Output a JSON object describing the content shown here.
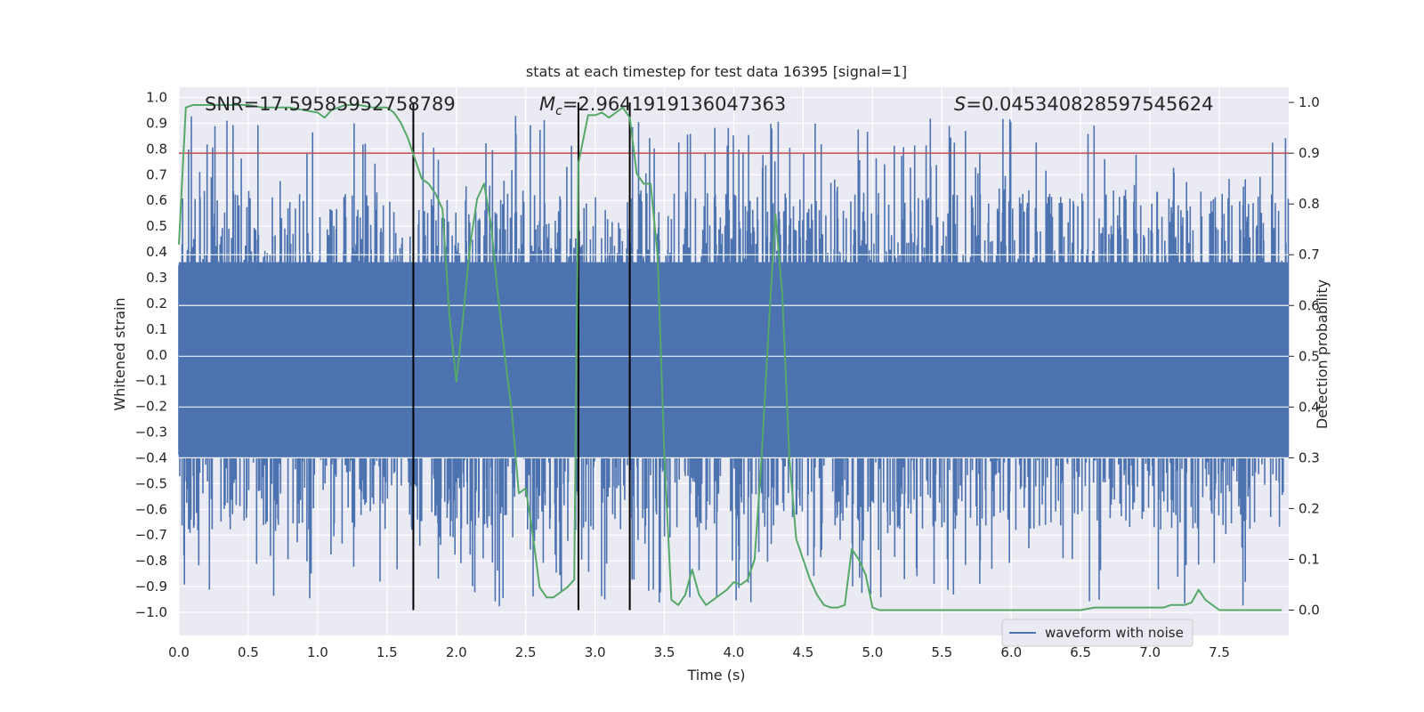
{
  "chart_data": {
    "type": "line",
    "title": "stats at each timestep for test data 16395 [signal=1]",
    "xlabel": "Time (s)",
    "ylabel_left": "Whitened strain",
    "ylabel_right": "Detection probability",
    "xlim": [
      0.0,
      8.0
    ],
    "ylim_left": [
      -1.09,
      1.04
    ],
    "ylim_right": [
      -0.05,
      1.03
    ],
    "x_ticks": [
      "0.0",
      "0.5",
      "1.0",
      "1.5",
      "2.0",
      "2.5",
      "3.0",
      "3.5",
      "4.0",
      "4.5",
      "5.0",
      "5.5",
      "6.0",
      "6.5",
      "7.0",
      "7.5"
    ],
    "y_left_ticks": [
      "1.0",
      "0.9",
      "0.8",
      "0.7",
      "0.6",
      "0.5",
      "0.4",
      "0.3",
      "0.2",
      "0.1",
      "0.0",
      "−0.1",
      "−0.2",
      "−0.3",
      "−0.4",
      "−0.5",
      "−0.6",
      "−0.7",
      "−0.8",
      "−0.9",
      "−1.0"
    ],
    "y_right_ticks": [
      "1.0",
      "0.9",
      "0.8",
      "0.7",
      "0.6",
      "0.5",
      "0.4",
      "0.3",
      "0.2",
      "0.1",
      "0.0"
    ],
    "grid": true,
    "legend": {
      "position": "bottom-right",
      "entries": [
        "waveform with noise"
      ]
    },
    "annotations": {
      "snr": "SNR=17.59585952758789",
      "mc_symbol": "M",
      "mc_sub": "c",
      "mc_value": "=2.9641919136047363",
      "s_symbol": "S",
      "s_value": "=0.045340828597545624"
    },
    "threshold": 0.9,
    "vlines": [
      1.69,
      2.88,
      3.25
    ],
    "waveform": {
      "name": "waveform with noise",
      "samples": 2400,
      "core_upper": 0.36,
      "core_lower": -0.4,
      "spike_upper_max": 0.93,
      "spike_lower_min": -0.98
    },
    "detection_probability": {
      "name": "detection probability",
      "x": [
        0.0,
        0.05,
        0.1,
        0.2,
        0.3,
        0.4,
        0.5,
        0.6,
        0.7,
        0.8,
        0.9,
        1.0,
        1.05,
        1.1,
        1.15,
        1.2,
        1.3,
        1.4,
        1.5,
        1.55,
        1.6,
        1.65,
        1.7,
        1.75,
        1.8,
        1.85,
        1.9,
        1.95,
        2.0,
        2.05,
        2.1,
        2.15,
        2.2,
        2.25,
        2.3,
        2.35,
        2.4,
        2.45,
        2.5,
        2.55,
        2.6,
        2.65,
        2.7,
        2.75,
        2.8,
        2.85,
        2.88,
        2.95,
        3.0,
        3.05,
        3.1,
        3.15,
        3.2,
        3.25,
        3.3,
        3.35,
        3.4,
        3.45,
        3.5,
        3.55,
        3.6,
        3.65,
        3.7,
        3.75,
        3.8,
        3.85,
        3.9,
        3.95,
        4.0,
        4.05,
        4.1,
        4.15,
        4.2,
        4.25,
        4.3,
        4.35,
        4.4,
        4.45,
        4.5,
        4.55,
        4.6,
        4.65,
        4.7,
        4.75,
        4.8,
        4.85,
        4.9,
        4.95,
        5.0,
        5.05,
        5.1,
        5.5,
        6.0,
        6.5,
        6.6,
        6.7,
        7.0,
        7.1,
        7.15,
        7.2,
        7.25,
        7.3,
        7.35,
        7.4,
        7.5,
        7.6,
        7.7,
        7.8,
        7.95
      ],
      "y": [
        0.72,
        0.99,
        0.995,
        0.995,
        0.995,
        0.995,
        0.995,
        0.99,
        0.99,
        0.99,
        0.985,
        0.98,
        0.97,
        0.985,
        0.99,
        0.995,
        0.995,
        0.99,
        0.99,
        0.98,
        0.96,
        0.93,
        0.89,
        0.85,
        0.84,
        0.82,
        0.79,
        0.58,
        0.45,
        0.58,
        0.72,
        0.81,
        0.84,
        0.76,
        0.62,
        0.5,
        0.39,
        0.23,
        0.24,
        0.15,
        0.045,
        0.025,
        0.025,
        0.035,
        0.045,
        0.06,
        0.88,
        0.975,
        0.975,
        0.98,
        0.97,
        0.98,
        0.99,
        0.97,
        0.86,
        0.84,
        0.84,
        0.7,
        0.3,
        0.02,
        0.01,
        0.03,
        0.08,
        0.03,
        0.01,
        0.02,
        0.03,
        0.04,
        0.055,
        0.05,
        0.06,
        0.1,
        0.3,
        0.55,
        0.78,
        0.62,
        0.3,
        0.14,
        0.1,
        0.06,
        0.03,
        0.01,
        0.005,
        0.005,
        0.01,
        0.12,
        0.1,
        0.07,
        0.005,
        0.0,
        0.0,
        0.0,
        0.0,
        0.0,
        0.005,
        0.005,
        0.005,
        0.005,
        0.01,
        0.01,
        0.01,
        0.015,
        0.04,
        0.02,
        0.0,
        0.0,
        0.0,
        0.0,
        0.0
      ]
    },
    "colors": {
      "waveform": "#4c72b0",
      "probability": "#55a868",
      "threshold": "#c44e52",
      "vline": "#000000",
      "plot_bg": "#eaeaf2",
      "grid": "#ffffff"
    }
  }
}
